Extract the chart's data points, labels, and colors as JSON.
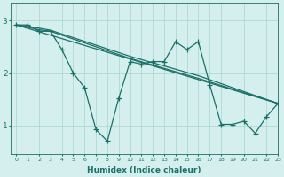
{
  "title": "",
  "xlabel": "Humidex (Indice chaleur)",
  "ylabel": "",
  "bg_color": "#d4efee",
  "line_color": "#1a7068",
  "grid_color": "#a8d4d0",
  "xlim": [
    -0.5,
    23
  ],
  "ylim": [
    0.45,
    3.35
  ],
  "yticks": [
    1,
    2,
    3
  ],
  "xticks": [
    0,
    1,
    2,
    3,
    4,
    5,
    6,
    7,
    8,
    9,
    10,
    11,
    12,
    13,
    14,
    15,
    16,
    17,
    18,
    19,
    20,
    21,
    22,
    23
  ],
  "line1_x": [
    0,
    1,
    2,
    3,
    4,
    5,
    6,
    7,
    8,
    9,
    10,
    11,
    12,
    13,
    14,
    15,
    16,
    17,
    18,
    19,
    20,
    21,
    22,
    23
  ],
  "line1_y": [
    2.92,
    2.92,
    2.8,
    2.8,
    2.45,
    2.0,
    1.72,
    0.92,
    0.7,
    1.52,
    2.22,
    2.17,
    2.22,
    2.22,
    2.6,
    2.45,
    2.6,
    1.78,
    1.02,
    1.02,
    1.08,
    0.85,
    1.17,
    1.42
  ],
  "line2_x": [
    0,
    23
  ],
  "line2_y": [
    2.92,
    1.42
  ],
  "line3_x": [
    0,
    2,
    3,
    10,
    16,
    23
  ],
  "line3_y": [
    2.92,
    2.83,
    2.8,
    2.28,
    1.9,
    1.42
  ],
  "line4_x": [
    0,
    2,
    3,
    10,
    16,
    23
  ],
  "line4_y": [
    2.92,
    2.86,
    2.82,
    2.32,
    1.95,
    1.42
  ],
  "marker": "+",
  "markersize": 4,
  "linewidth": 0.9
}
